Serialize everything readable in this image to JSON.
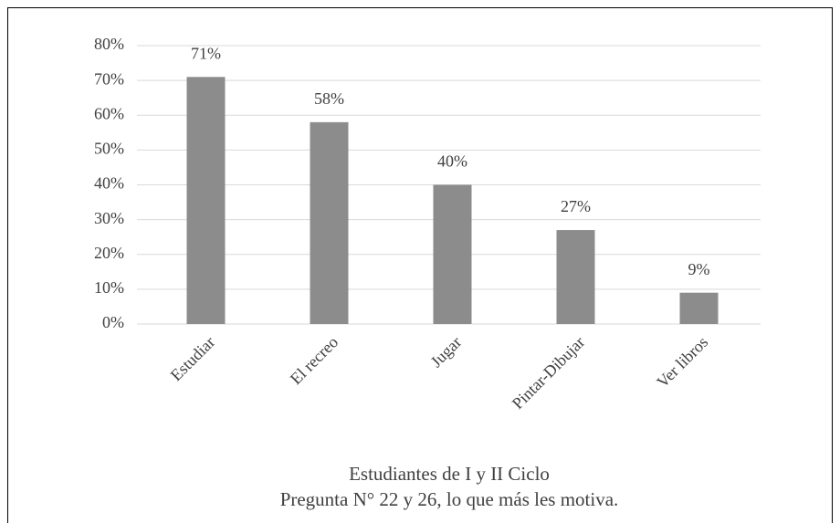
{
  "chart_data": {
    "type": "bar",
    "title": "Estudiantes de I y II Ciclo",
    "subtitle": "Pregunta N° 22 y 26, lo que más les motiva.",
    "categories": [
      "Estudiar",
      "El recreo",
      "Jugar",
      "Pintar-Dibujar",
      "Ver libros"
    ],
    "values": [
      71,
      58,
      40,
      27,
      9
    ],
    "value_labels": [
      "71%",
      "58%",
      "40%",
      "27%",
      "9%"
    ],
    "color": "#8c8c8c",
    "ylim": [
      0,
      80
    ],
    "yticks": [
      {
        "value": 0,
        "label": "0%"
      },
      {
        "value": 10,
        "label": "10%"
      },
      {
        "value": 20,
        "label": "20%"
      },
      {
        "value": 30,
        "label": "30%"
      },
      {
        "value": 40,
        "label": "40%"
      },
      {
        "value": 50,
        "label": "50%"
      },
      {
        "value": 60,
        "label": "60%"
      },
      {
        "value": 70,
        "label": "70%"
      },
      {
        "value": 80,
        "label": "80%"
      }
    ],
    "grid": true
  }
}
